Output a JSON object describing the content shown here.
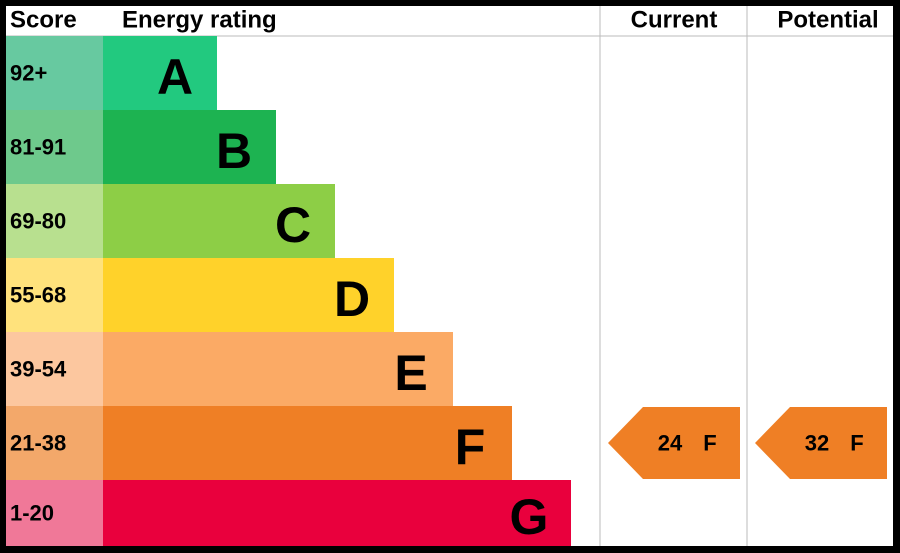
{
  "header": {
    "score": "Score",
    "rating": "Energy rating",
    "current": "Current",
    "potential": "Potential"
  },
  "bands": [
    {
      "score": "92+",
      "letter": "A",
      "bar_color": "#22c97f",
      "score_color": "#67c9a0"
    },
    {
      "score": "81-91",
      "letter": "B",
      "bar_color": "#1db351",
      "score_color": "#6ec98c"
    },
    {
      "score": "69-80",
      "letter": "C",
      "bar_color": "#8dce46",
      "score_color": "#b8e08f"
    },
    {
      "score": "55-68",
      "letter": "D",
      "bar_color": "#ffd22a",
      "score_color": "#ffe27c"
    },
    {
      "score": "39-54",
      "letter": "E",
      "bar_color": "#fbaa65",
      "score_color": "#fcc79f"
    },
    {
      "score": "21-38",
      "letter": "F",
      "bar_color": "#ef7f25",
      "score_color": "#f3a86a"
    },
    {
      "score": "1-20",
      "letter": "G",
      "bar_color": "#e9003d",
      "score_color": "#f07898"
    }
  ],
  "current": {
    "value": 24,
    "band": "F"
  },
  "potential": {
    "value": 32,
    "band": "F"
  }
}
